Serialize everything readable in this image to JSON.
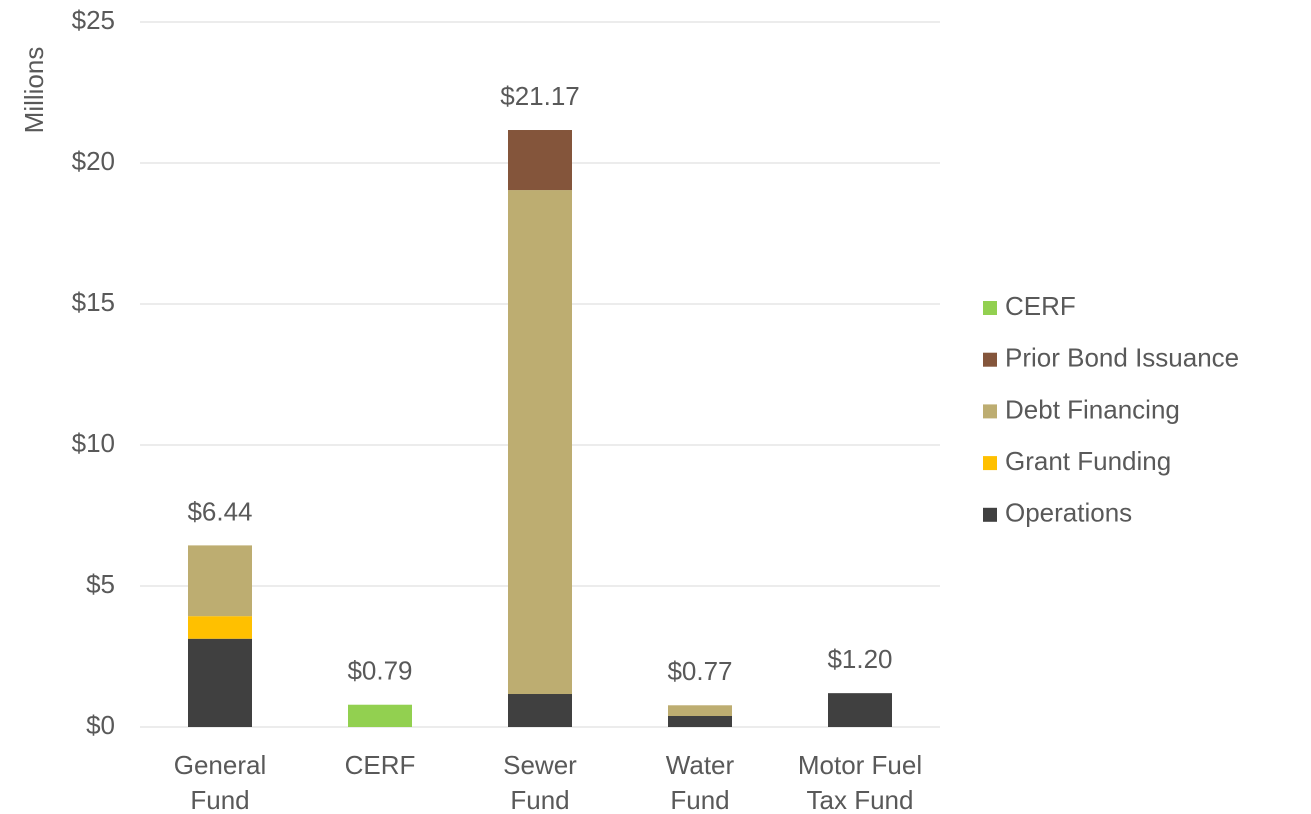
{
  "chart_data": {
    "type": "stacked_bar",
    "y_label": "Millions",
    "categories": [
      [
        "General",
        "Fund"
      ],
      [
        "CERF"
      ],
      [
        "Sewer",
        "Fund"
      ],
      [
        "Water",
        "Fund"
      ],
      [
        "Motor Fuel",
        "Tax Fund"
      ]
    ],
    "series": [
      {
        "name": "Operations",
        "color": "#404040",
        "values": [
          3.13,
          null,
          1.17,
          0.39,
          1.2
        ]
      },
      {
        "name": "Grant Funding",
        "color": "#ffc000",
        "values": [
          0.8,
          null,
          null,
          null,
          null
        ]
      },
      {
        "name": "Debt Financing",
        "color": "#bdad71",
        "values": [
          2.51,
          null,
          17.87,
          0.38,
          null
        ]
      },
      {
        "name": "Prior Bond Issuance",
        "color": "#84553b",
        "values": [
          null,
          null,
          2.13,
          null,
          null
        ]
      },
      {
        "name": "CERF",
        "color": "#92d050",
        "values": [
          null,
          0.79,
          null,
          null,
          null
        ]
      }
    ],
    "totals": [
      6.44,
      0.79,
      21.17,
      0.77,
      1.2
    ],
    "total_labels": [
      "$6.44",
      "$0.79",
      "$21.17",
      "$0.77",
      "$1.20"
    ],
    "ylim": [
      0,
      25
    ],
    "yticks": [
      {
        "value": 0,
        "label": "$0"
      },
      {
        "value": 5,
        "label": "$5"
      },
      {
        "value": 10,
        "label": "$10"
      },
      {
        "value": 15,
        "label": "$15"
      },
      {
        "value": 20,
        "label": "$20"
      },
      {
        "value": 25,
        "label": "$25"
      }
    ],
    "grid": true,
    "legend": "right"
  }
}
